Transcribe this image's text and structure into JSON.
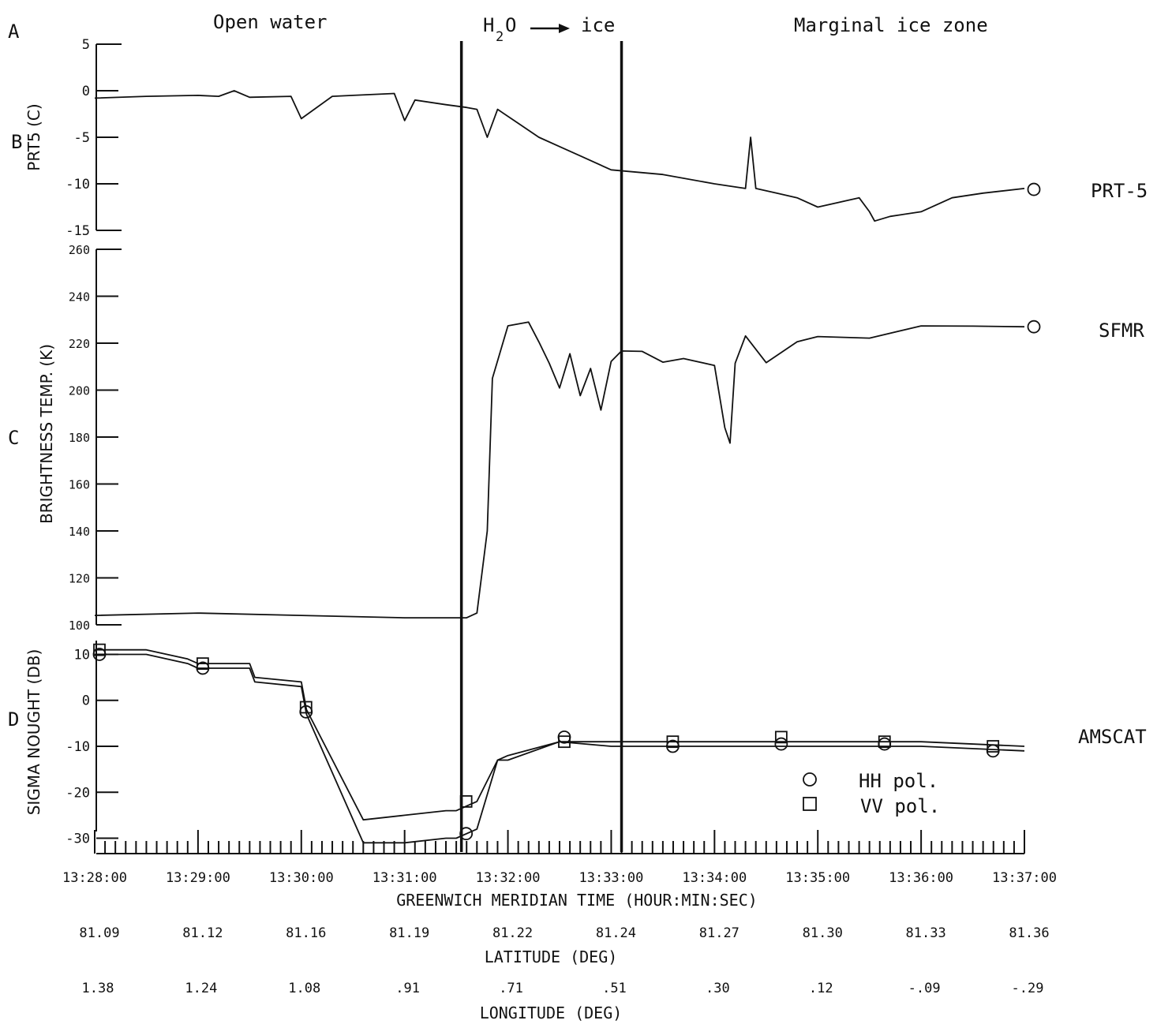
{
  "figure": {
    "panel_letters": [
      "A",
      "B",
      "C",
      "D"
    ],
    "regions": {
      "open_water": "Open water",
      "transition_h": "H",
      "transition_sub": "2",
      "transition_o": "O",
      "transition_ice": "ice",
      "marginal": "Marginal ice zone"
    },
    "right_labels": {
      "prt": "PRT-5",
      "sfmr": "SFMR",
      "amscat": "AMSCAT"
    },
    "legend": {
      "hh": "HH pol.",
      "vv": "VV pol."
    },
    "xlabel": "GREENWICH MERIDIAN TIME (HOUR:MIN:SEC)",
    "lat_label": "LATITUDE (DEG)",
    "lon_label": "LONGITUDE (DEG)",
    "time_ticks": [
      "13:28:00",
      "13:29:00",
      "13:30:00",
      "13:31:00",
      "13:32:00",
      "13:33:00",
      "13:34:00",
      "13:35:00",
      "13:36:00",
      "13:37:00"
    ],
    "latitudes": [
      "81.09",
      "81.12",
      "81.16",
      "81.19",
      "81.22",
      "81.24",
      "81.27",
      "81.30",
      "81.33",
      "81.36"
    ],
    "longitudes": [
      "1.38",
      "1.24",
      "1.08",
      ".91",
      ".71",
      ".51",
      ".30",
      ".12",
      "-.09",
      "-.29"
    ]
  },
  "chart_data": [
    {
      "type": "line",
      "panel": "B",
      "ylabel": "PRT5 (C)",
      "ylim": [
        -15,
        5
      ],
      "yticks": [
        5,
        0,
        -5,
        -10,
        -15
      ],
      "xlim_min": [
        0,
        9
      ],
      "series": [
        {
          "name": "PRT-5",
          "x": [
            0,
            0.5,
            1,
            1.2,
            1.35,
            1.5,
            1.9,
            2.0,
            2.3,
            2.5,
            2.9,
            3.0,
            3.1,
            3.4,
            3.6,
            3.7,
            3.8,
            3.9,
            4.1,
            4.3,
            4.5,
            4.7,
            5.0,
            5.5,
            6.0,
            6.3,
            6.35,
            6.4,
            6.6,
            6.8,
            7.0,
            7.2,
            7.4,
            7.5,
            7.55,
            7.7,
            8.0,
            8.3,
            8.6,
            9.0
          ],
          "y": [
            -0.8,
            -0.6,
            -0.5,
            -0.6,
            0.0,
            -0.7,
            -0.6,
            -3.0,
            -0.6,
            -0.5,
            -0.3,
            -3.2,
            -1.0,
            -1.5,
            -1.8,
            -2.0,
            -5.0,
            -2.0,
            -3.5,
            -5.0,
            -6.0,
            -7.0,
            -8.5,
            -9.0,
            -10.0,
            -10.5,
            -5.0,
            -10.5,
            -11.0,
            -11.5,
            -12.5,
            -12.0,
            -11.5,
            -13.0,
            -14.0,
            -13.5,
            -13.0,
            -11.5,
            -11.0,
            -10.5
          ]
        }
      ],
      "markers": [
        {
          "series": "PRT-5",
          "x": 9.0,
          "y": -10.6,
          "shape": "circle"
        }
      ]
    },
    {
      "type": "line",
      "panel": "C",
      "ylabel": "BRIGHTNESS TEMP. (K)",
      "ylim": [
        100,
        260
      ],
      "yticks": [
        260,
        240,
        220,
        200,
        180,
        160,
        140,
        120,
        100
      ],
      "xlim_min": [
        0,
        9
      ],
      "series": [
        {
          "name": "SFMR",
          "x": [
            0,
            1,
            2,
            3,
            3.4,
            3.6,
            3.7,
            3.8,
            3.85,
            4.0,
            4.2,
            4.3,
            4.4,
            4.5,
            4.6,
            4.7,
            4.8,
            4.9,
            5.0,
            5.1,
            5.3,
            5.5,
            5.7,
            6.0,
            6.1,
            6.15,
            6.2,
            6.3,
            6.5,
            6.8,
            7.0,
            7.5,
            8.0,
            8.5,
            9.0
          ],
          "y": [
            104,
            105,
            104,
            103,
            103,
            103,
            105,
            140,
            205,
            227,
            230,
            222,
            212,
            200,
            214,
            197,
            210,
            193,
            213,
            216,
            215,
            211,
            214,
            212,
            185,
            177,
            210,
            222,
            212,
            222,
            224,
            222,
            226,
            226,
            227
          ]
        }
      ],
      "markers": [
        {
          "series": "SFMR",
          "x": 9.0,
          "y": 227,
          "shape": "circle"
        }
      ]
    },
    {
      "type": "line",
      "panel": "D",
      "ylabel": "SIGMA NOUGHT (DB)",
      "ylim": [
        -33,
        13
      ],
      "yticks": [
        10,
        0,
        -10,
        -20,
        -30
      ],
      "xlim_min": [
        0,
        9
      ],
      "series": [
        {
          "name": "HH pol.",
          "x": [
            0,
            0.5,
            0.9,
            1.0,
            1.5,
            1.55,
            2.0,
            2.05,
            2.6,
            3.0,
            3.4,
            3.5,
            3.7,
            3.9,
            4.0,
            4.5,
            5.0,
            6.0,
            7.0,
            8.0,
            9.0
          ],
          "y": [
            10,
            10,
            8,
            7,
            7,
            4,
            3,
            -3,
            -31,
            -31,
            -30,
            -30,
            -28,
            -13,
            -13,
            -9,
            -10,
            -10,
            -10,
            -10,
            -11
          ]
        },
        {
          "name": "VV pol.",
          "x": [
            0,
            0.5,
            0.9,
            1.0,
            1.5,
            1.55,
            2.0,
            2.05,
            2.6,
            3.0,
            3.4,
            3.5,
            3.7,
            3.9,
            4.0,
            4.5,
            5.0,
            6.0,
            7.0,
            8.0,
            9.0
          ],
          "y": [
            11,
            11,
            9,
            8,
            8,
            5,
            4,
            -2,
            -26,
            -25,
            -24,
            -24,
            -22,
            -13,
            -12,
            -9,
            -9,
            -9,
            -9,
            -9,
            -10
          ]
        }
      ],
      "markers": [
        {
          "series": "HH pol.",
          "shape": "circle",
          "points": [
            [
              0,
              10
            ],
            [
              1,
              7
            ],
            [
              2,
              -2.5
            ],
            [
              3.55,
              -29
            ],
            [
              4.5,
              -8
            ],
            [
              5.55,
              -10
            ],
            [
              6.6,
              -9.5
            ],
            [
              7.6,
              -9.5
            ],
            [
              8.65,
              -11
            ]
          ]
        },
        {
          "series": "VV pol.",
          "shape": "square",
          "points": [
            [
              0,
              11
            ],
            [
              1,
              8
            ],
            [
              2,
              -1.5
            ],
            [
              3.55,
              -22
            ],
            [
              4.5,
              -9
            ],
            [
              5.55,
              -9
            ],
            [
              6.6,
              -8
            ],
            [
              7.6,
              -9
            ],
            [
              8.65,
              -10
            ]
          ]
        }
      ],
      "vlines_min": [
        3.55,
        5.1
      ]
    }
  ]
}
